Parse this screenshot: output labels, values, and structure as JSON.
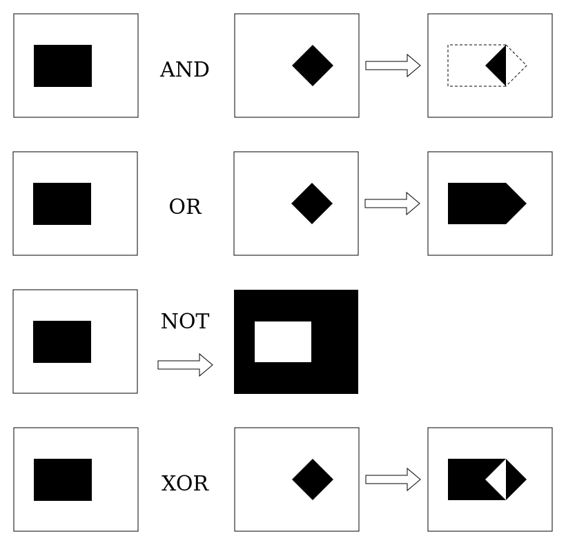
{
  "operations": {
    "and": "AND",
    "or": "OR",
    "not": "NOT",
    "xor": "XOR"
  },
  "colors": {
    "ink": "#000000",
    "paper": "#ffffff"
  },
  "icons": {
    "arrow": "right-arrow-icon"
  }
}
